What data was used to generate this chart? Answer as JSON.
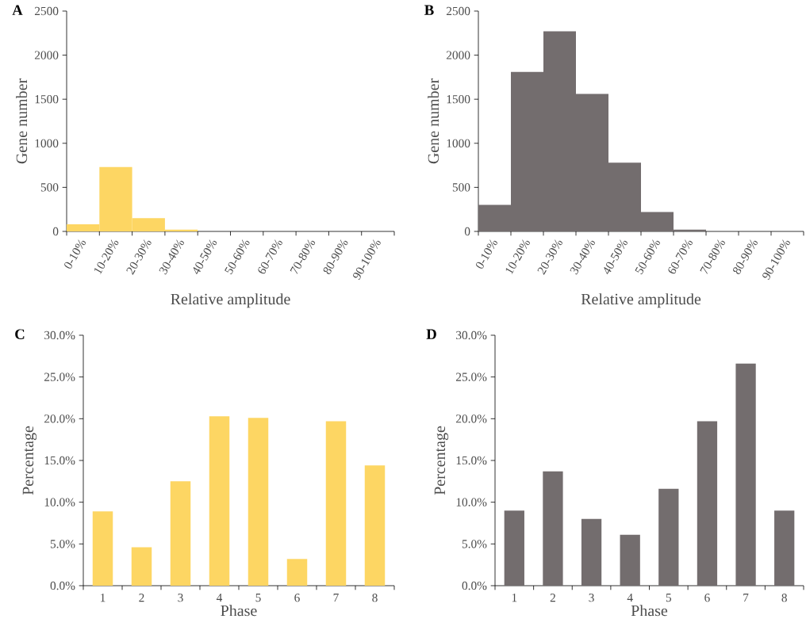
{
  "chart_data": [
    {
      "type": "bar",
      "title": "A",
      "xlabel": "Relative amplitude",
      "ylabel": "Gene number",
      "categories": [
        "0-10%",
        "10-20%",
        "20-30%",
        "30-40%",
        "40-50%",
        "50-60%",
        "60-70%",
        "70-80%",
        "80-90%",
        "90-100%"
      ],
      "values": [
        80,
        730,
        150,
        20,
        0,
        0,
        0,
        0,
        0,
        0
      ],
      "color": "#fdd663",
      "ylim": [
        0,
        2500
      ],
      "yticks": [
        0,
        500,
        1000,
        1500,
        2000,
        2500
      ]
    },
    {
      "type": "bar",
      "title": "B",
      "xlabel": "Relative amplitude",
      "ylabel": "Gene number",
      "categories": [
        "0-10%",
        "10-20%",
        "20-30%",
        "30-40%",
        "40-50%",
        "50-60%",
        "60-70%",
        "70-80%",
        "80-90%",
        "90-100%"
      ],
      "values": [
        300,
        1810,
        2270,
        1560,
        780,
        220,
        20,
        0,
        0,
        0
      ],
      "color": "#736d6e",
      "ylim": [
        0,
        2500
      ],
      "yticks": [
        0,
        500,
        1000,
        1500,
        2000,
        2500
      ]
    },
    {
      "type": "bar",
      "title": "C",
      "xlabel": "Phase",
      "ylabel": "Percentage",
      "categories": [
        "1",
        "2",
        "3",
        "4",
        "5",
        "6",
        "7",
        "8"
      ],
      "values": [
        8.9,
        4.6,
        12.5,
        20.3,
        20.1,
        3.2,
        19.7,
        14.4
      ],
      "color": "#fdd663",
      "ylim": [
        0,
        30
      ],
      "yticks": [
        {
          "value": 0,
          "label": "0.0%"
        },
        {
          "value": 5,
          "label": "5.0%"
        },
        {
          "value": 10,
          "label": "10.0%"
        },
        {
          "value": 15,
          "label": "15.0%"
        },
        {
          "value": 20,
          "label": "20.0%"
        },
        {
          "value": 25,
          "label": "25.0%"
        },
        {
          "value": 30,
          "label": "30.0%"
        }
      ]
    },
    {
      "type": "bar",
      "title": "D",
      "xlabel": "Phase",
      "ylabel": "Percentage",
      "categories": [
        "1",
        "2",
        "3",
        "4",
        "5",
        "6",
        "7",
        "8"
      ],
      "values": [
        9.0,
        13.7,
        8.0,
        6.1,
        11.6,
        19.7,
        26.6,
        9.0
      ],
      "color": "#736d6e",
      "ylim": [
        0,
        30
      ],
      "yticks": [
        {
          "value": 0,
          "label": "0.0%"
        },
        {
          "value": 5,
          "label": "5.0%"
        },
        {
          "value": 10,
          "label": "10.0%"
        },
        {
          "value": 15,
          "label": "15.0%"
        },
        {
          "value": 20,
          "label": "20.0%"
        },
        {
          "value": 25,
          "label": "25.0%"
        },
        {
          "value": 30,
          "label": "30.0%"
        }
      ]
    }
  ]
}
